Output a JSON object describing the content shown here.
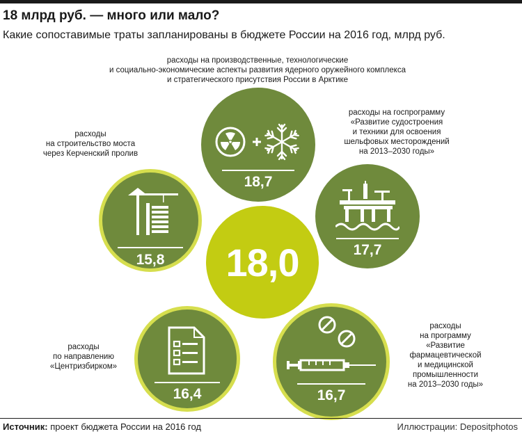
{
  "header": {
    "title": "18 млрд руб. — много или мало?",
    "subtitle": "Какие сопоставимые траты запланированы в бюджете России на 2016 год, млрд руб."
  },
  "chart_data": {
    "type": "bubble",
    "title": "18 млрд руб. — много или мало?",
    "subtitle": "Какие сопоставимые траты запланированы в бюджете России на 2016 год, млрд руб.",
    "center": {
      "value": "18,0"
    },
    "items": [
      {
        "id": "nuclear",
        "value": "18,7",
        "icon": "radiation-snowflake-icon",
        "caption": [
          "расходы на производственные, технологические",
          "и социально-экономические аспекты развития ядерного оружейного комплекса",
          "и стратегического присутствия России в Арктике"
        ]
      },
      {
        "id": "shipbuilding",
        "value": "17,7",
        "icon": "oil-platform-icon",
        "caption": [
          "расходы на госпрограмму",
          "«Развитие судостроения",
          "и техники для освоения",
          "шельфовых месторождений",
          "на 2013–2030 годы»"
        ]
      },
      {
        "id": "pharma",
        "value": "16,7",
        "icon": "syringe-pills-icon",
        "caption": [
          "расходы",
          "на программу",
          "«Развитие",
          "фармацевтической",
          "и медицинской",
          "промышленности",
          "на 2013–2030 годы»"
        ]
      },
      {
        "id": "centrizbirkom",
        "value": "16,4",
        "icon": "checklist-document-icon",
        "caption": [
          "расходы",
          "по направлению",
          "«Центризбирком»"
        ]
      },
      {
        "id": "bridge",
        "value": "15,8",
        "icon": "crane-building-icon",
        "caption": [
          "расходы",
          "на строительство моста",
          "через Керченский пролив"
        ]
      }
    ],
    "colors": {
      "bubble": "#6f8a3c",
      "center": "#c3cc12",
      "ring": "#d6de4e"
    }
  },
  "footer": {
    "source_label": "Источник:",
    "source_text": " проект бюджета России на 2016 год",
    "credit": "Иллюстрации: Depositphotos"
  }
}
